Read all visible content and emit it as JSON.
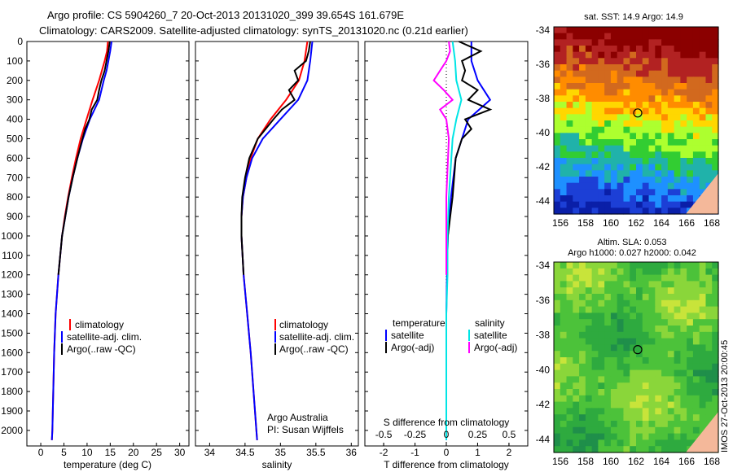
{
  "header": {
    "line1": "Argo profile: CS 5904260_7 20-Oct-2013 20131020_399 39.654S 161.679E",
    "line2": "Climatology: CARS2009. Satellite-adjusted climatology: synTS_20131020.nc (0.21d earlier)"
  },
  "colors": {
    "climatology": "#ff0000",
    "satellite": "#0000ff",
    "argo": "#000000",
    "s_satellite": "#00e5e5",
    "s_argo": "#ff00ff"
  },
  "y_ticks": [
    "0",
    "100",
    "200",
    "300",
    "400",
    "500",
    "600",
    "700",
    "800",
    "900",
    "1000",
    "1100",
    "1200",
    "1300",
    "1400",
    "1500",
    "1600",
    "1700",
    "1800",
    "1900",
    "2000"
  ],
  "temp_panel": {
    "xlabel": "temperature (deg C)",
    "x_ticks": [
      "0",
      "5",
      "10",
      "15",
      "20",
      "25",
      "30"
    ],
    "legend": [
      "climatology",
      "satellite-adj. clim.",
      "Argo(..raw -QC)"
    ]
  },
  "sal_panel": {
    "xlabel": "salinity",
    "x_ticks": [
      "34",
      "34.5",
      "35",
      "35.5",
      "36"
    ],
    "legend": [
      "climatology",
      "satellite-adj. clim.",
      "Argo(..raw -QC)"
    ],
    "note_line1": "Argo Australia",
    "note_line2": "PI: Susan Wijffels"
  },
  "diff_panel": {
    "xlabel": "T difference from climatology",
    "top_label": "S difference from climatology",
    "t_ticks": [
      "-2",
      "-1",
      "0",
      "1",
      "2"
    ],
    "s_ticks": [
      "-0.5",
      "-0.25",
      "0",
      "0.25",
      "0.5"
    ],
    "legend_temp_title": "temperature",
    "legend_sal_title": "salinity",
    "legend_temp": [
      "satellite",
      "Argo(-adj)"
    ],
    "legend_sal": [
      "satellite",
      "Argo(-adj)"
    ]
  },
  "map_sst": {
    "title": "sat. SST: 14.9 Argo: 14.9",
    "y_ticks": [
      "-34",
      "-36",
      "-38",
      "-40",
      "-42",
      "-44"
    ],
    "x_ticks": [
      "156",
      "158",
      "160",
      "162",
      "164",
      "166",
      "168"
    ]
  },
  "map_sla": {
    "title1": "Altim. SLA: 0.053",
    "title2": "Argo h1000: 0.027 h2000: 0.042",
    "y_ticks": [
      "-34",
      "-36",
      "-38",
      "-40",
      "-42",
      "-44"
    ],
    "x_ticks": [
      "156",
      "158",
      "160",
      "162",
      "164",
      "166",
      "168"
    ]
  },
  "credit": "IMOS 27-Oct-2013 20:00:45",
  "chart_data": [
    {
      "type": "line",
      "xlabel": "temperature (deg C)",
      "xlim": [
        -3,
        32
      ],
      "ylim": [
        2080,
        0
      ],
      "series": [
        {
          "name": "climatology",
          "pressure": [
            0,
            50,
            100,
            150,
            200,
            300,
            400,
            500,
            600,
            700,
            800,
            900,
            1000,
            1200,
            1400,
            1600,
            1800,
            2000,
            2050
          ],
          "values": [
            14.5,
            14.3,
            13.8,
            13.2,
            12.6,
            11.2,
            9.9,
            8.6,
            7.6,
            6.7,
            5.9,
            5.2,
            4.6,
            3.8,
            3.2,
            2.9,
            2.7,
            2.5,
            2.4
          ]
        },
        {
          "name": "satellite-adj. clim.",
          "pressure": [
            0,
            50,
            100,
            150,
            200,
            300,
            400,
            500,
            600,
            700,
            800,
            900,
            1000,
            1200,
            1400,
            1600,
            1800,
            2000,
            2050
          ],
          "values": [
            15.3,
            15.0,
            14.6,
            14.2,
            13.6,
            12.6,
            10.6,
            9.1,
            7.9,
            6.9,
            6.0,
            5.3,
            4.6,
            3.8,
            3.2,
            2.9,
            2.7,
            2.5,
            2.4
          ]
        },
        {
          "name": "Argo(..raw -QC)",
          "pressure": [
            0,
            50,
            100,
            150,
            200,
            250,
            300,
            350,
            400,
            450,
            500,
            600,
            700,
            800,
            900,
            1000,
            1200
          ],
          "values": [
            14.9,
            14.6,
            14.2,
            13.8,
            13.1,
            12.6,
            12.2,
            11.0,
            10.5,
            9.6,
            9.0,
            7.9,
            6.9,
            6.0,
            5.3,
            4.6,
            3.8
          ]
        }
      ]
    },
    {
      "type": "line",
      "xlabel": "salinity",
      "xlim": [
        33.8,
        36.1
      ],
      "ylim": [
        2080,
        0
      ],
      "series": [
        {
          "name": "climatology",
          "pressure": [
            0,
            100,
            200,
            300,
            400,
            500,
            600,
            700,
            800,
            900,
            1000,
            1200,
            1400,
            1600,
            1800,
            2000,
            2050
          ],
          "values": [
            35.38,
            35.34,
            35.26,
            35.08,
            34.86,
            34.68,
            34.58,
            34.52,
            34.47,
            34.45,
            34.45,
            34.48,
            34.53,
            34.58,
            34.62,
            34.66,
            34.67
          ]
        },
        {
          "name": "satellite-adj. clim.",
          "pressure": [
            0,
            100,
            200,
            300,
            400,
            500,
            600,
            700,
            800,
            900,
            1000,
            1200,
            1400,
            1600,
            1800,
            2000,
            2050
          ],
          "values": [
            35.45,
            35.42,
            35.38,
            35.25,
            35.0,
            34.75,
            34.6,
            34.52,
            34.47,
            34.45,
            34.45,
            34.48,
            34.53,
            34.58,
            34.62,
            34.66,
            34.67
          ]
        },
        {
          "name": "Argo(..raw -QC)",
          "pressure": [
            0,
            50,
            100,
            150,
            200,
            250,
            300,
            350,
            400,
            500,
            600,
            700,
            800,
            900,
            1000,
            1200
          ],
          "values": [
            35.42,
            35.4,
            35.36,
            35.2,
            35.25,
            35.12,
            35.2,
            35.02,
            34.9,
            34.68,
            34.56,
            34.5,
            34.46,
            34.45,
            34.45,
            34.48
          ]
        }
      ]
    },
    {
      "type": "line",
      "xlabel": "T difference from climatology",
      "xlim": [
        -2.6,
        2.6
      ],
      "ylim": [
        2080,
        0
      ],
      "series": [
        {
          "name": "satellite",
          "pressure": [
            0,
            100,
            200,
            300,
            400,
            500,
            600,
            800,
            1000,
            1200,
            1400,
            1600,
            1800,
            2000,
            2050
          ],
          "values": [
            0.8,
            0.8,
            1.0,
            1.4,
            0.7,
            0.5,
            0.3,
            0.15,
            0.05,
            0.02,
            0,
            0,
            0,
            0,
            0
          ]
        },
        {
          "name": "Argo(-adj)",
          "pressure": [
            0,
            50,
            100,
            150,
            200,
            250,
            300,
            350,
            400,
            450,
            500,
            600,
            800,
            1000,
            1200
          ],
          "values": [
            0.4,
            1.1,
            0.5,
            0.6,
            0.5,
            1.0,
            0.7,
            1.4,
            0.6,
            0.8,
            0.5,
            0.3,
            0.2,
            0.05,
            0.02
          ]
        }
      ]
    },
    {
      "type": "line",
      "xlabel": "S difference from climatology",
      "xlim": [
        -0.65,
        0.65
      ],
      "ylim": [
        2080,
        0
      ],
      "series": [
        {
          "name": "satellite",
          "pressure": [
            0,
            100,
            200,
            300,
            400,
            500,
            800,
            1000,
            1200,
            1400,
            1600,
            1800,
            2000,
            2050
          ],
          "values": [
            0.05,
            0.07,
            0.08,
            0.12,
            0.08,
            0.05,
            0.02,
            0.01,
            0.01,
            0,
            0,
            0,
            0,
            0
          ]
        },
        {
          "name": "Argo(-adj)",
          "pressure": [
            0,
            50,
            100,
            150,
            200,
            250,
            300,
            350,
            400,
            500,
            800,
            1000,
            1200
          ],
          "values": [
            0.02,
            0.03,
            0.0,
            -0.05,
            -0.1,
            -0.02,
            0.05,
            -0.05,
            0.0,
            0.02,
            0.0,
            0.0,
            0.0
          ]
        }
      ]
    }
  ]
}
